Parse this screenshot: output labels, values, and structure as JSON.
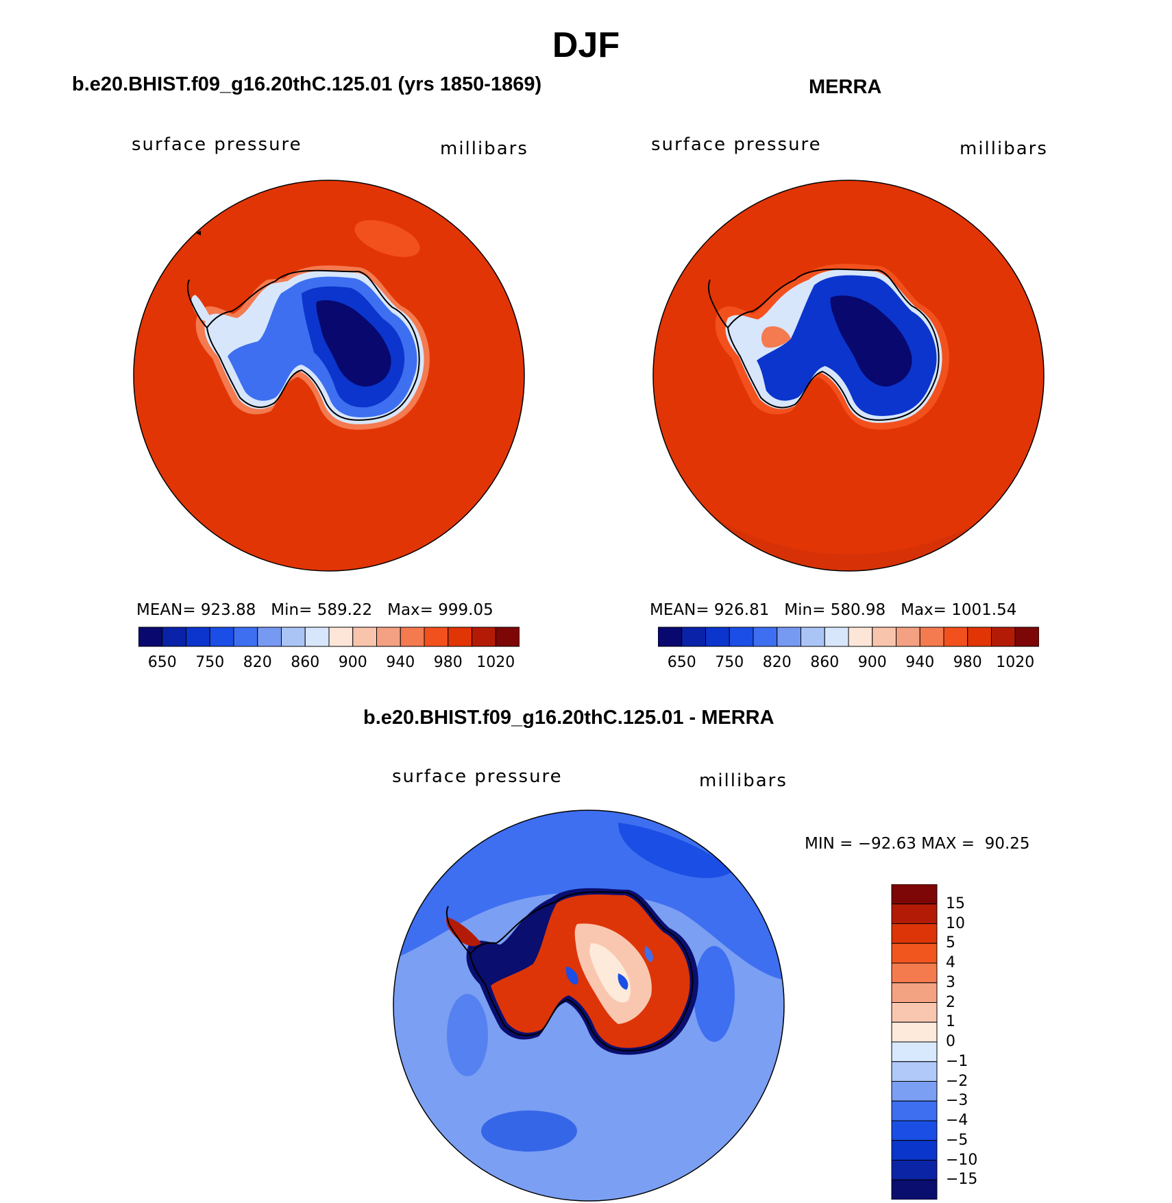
{
  "figure_title": "DJF",
  "colors": {
    "abs_scale": [
      "#08086e",
      "#0a22a8",
      "#0b35cc",
      "#1a4ee6",
      "#3e6ff0",
      "#7699f2",
      "#abc4f6",
      "#d7e6fb",
      "#fde6d8",
      "#f8c4ac",
      "#f4a082",
      "#f47a50",
      "#f2511e",
      "#e23505",
      "#b41b07",
      "#7d0707"
    ],
    "diff_scale": [
      "#0a0e6e",
      "#0b24a5",
      "#0a36cc",
      "#1a4ee4",
      "#3e6ff0",
      "#7b9ff2",
      "#b0c9f8",
      "#d9e9fd",
      "#fdeadb",
      "#f9c7b0",
      "#f4a382",
      "#f47b4e",
      "#f2561f",
      "#dd3508",
      "#b41b07",
      "#7d0707"
    ],
    "coast": "#000000",
    "outline": "#000000"
  },
  "panels": {
    "model": {
      "title": "b.e20.BHIST.f09_g16.20thC.125.01 (yrs 1850-1869)",
      "left_label": "surface pressure",
      "right_label": "millibars",
      "stats": "MEAN= 923.88   Min= 589.22   Max= 999.05",
      "colorbar_ticks": [
        "650",
        "750",
        "820",
        "860",
        "900",
        "940",
        "980",
        "1020"
      ]
    },
    "obs": {
      "title": "MERRA",
      "left_label": "surface pressure",
      "right_label": "millibars",
      "stats": "MEAN= 926.81   Min= 580.98   Max= 1001.54",
      "colorbar_ticks": [
        "650",
        "750",
        "820",
        "860",
        "900",
        "940",
        "980",
        "1020"
      ]
    },
    "diff": {
      "title": "b.e20.BHIST.f09_g16.20thC.125.01 - MERRA",
      "left_label": "surface pressure",
      "right_label": "millibars",
      "minmax": "MIN = −92.63 MAX =  90.25",
      "colorbar_ticks": [
        "15",
        "10",
        "5",
        "4",
        "3",
        "2",
        "1",
        "0",
        "−1",
        "−2",
        "−3",
        "−4",
        "−5",
        "−10",
        "−15"
      ]
    }
  }
}
